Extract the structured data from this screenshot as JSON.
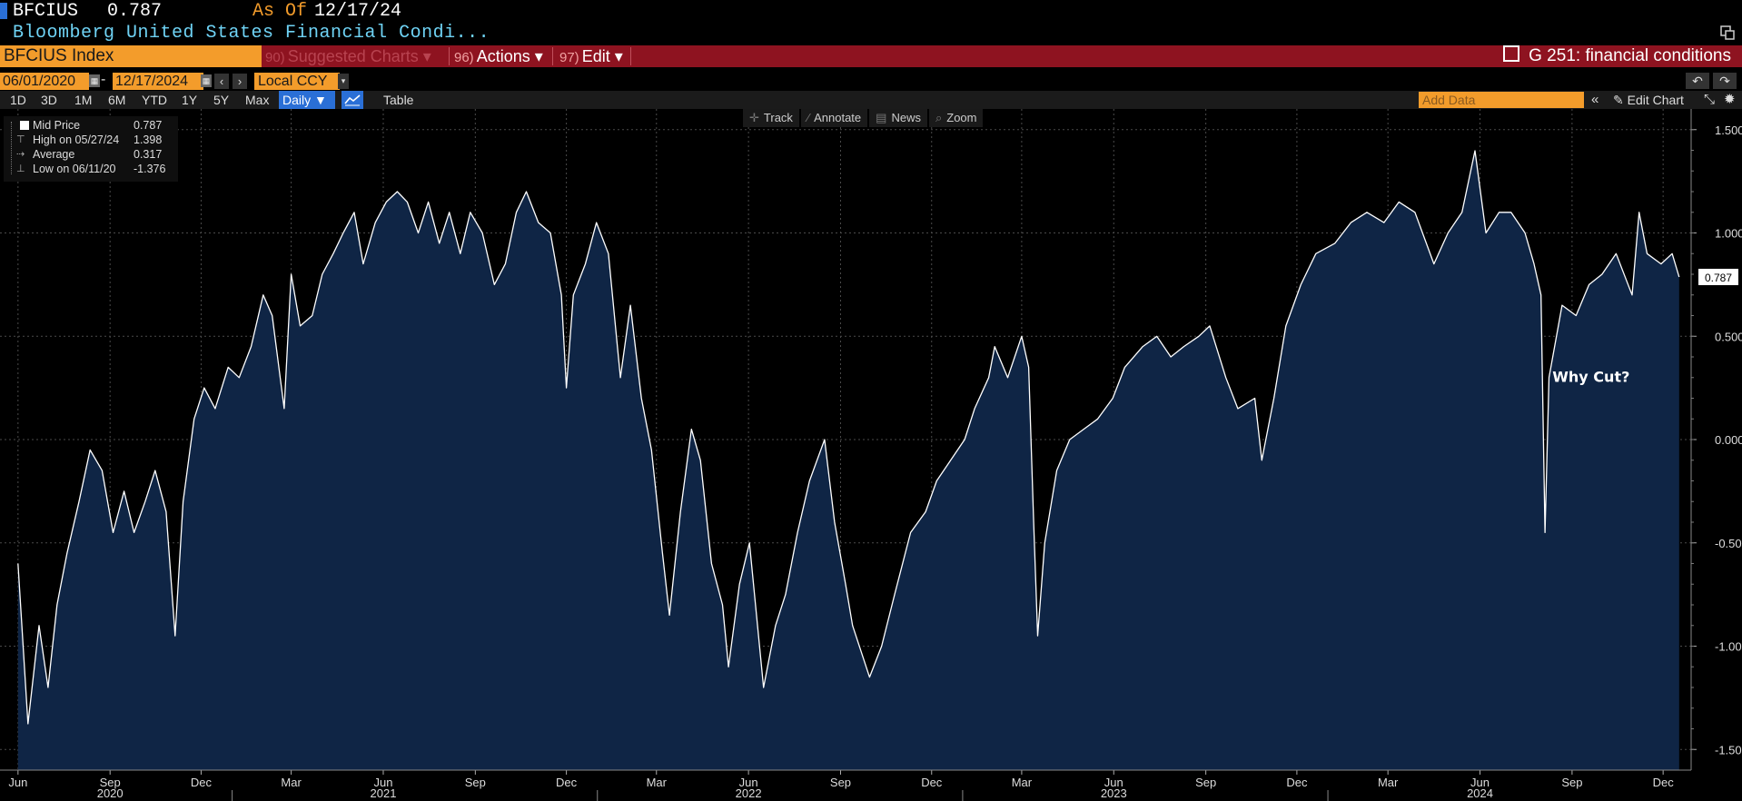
{
  "header": {
    "ticker": "BFCIUS",
    "value": "0.787",
    "as_of_label": "As Of",
    "as_of_date": "12/17/24",
    "description": "Bloomberg United States Financial Condi..."
  },
  "command_bar": {
    "index_field": "BFCIUS Index",
    "suggested_num": "90)",
    "suggested_label": "Suggested Charts",
    "actions_num": "96)",
    "actions_label": "Actions",
    "edit_num": "97)",
    "edit_label": "Edit",
    "g_title": "G 251: financial conditions"
  },
  "date_range": {
    "start": "06/01/2020",
    "end": "12/17/2024",
    "dash": "-",
    "currency": "Local CCY"
  },
  "periods": [
    "1D",
    "3D",
    "1M",
    "6M",
    "YTD",
    "1Y",
    "5Y",
    "Max"
  ],
  "toolbar": {
    "frequency": "Daily",
    "table_label": "Table",
    "add_data_placeholder": "Add Data",
    "edit_chart_label": "Edit Chart"
  },
  "chart_tools": [
    "Track",
    "Annotate",
    "News",
    "Zoom"
  ],
  "legend": {
    "mid_label": "Mid Price",
    "mid_value": "0.787",
    "high_label": "High on 05/27/24",
    "high_value": "1.398",
    "avg_label": "Average",
    "avg_value": "0.317",
    "low_label": "Low on 06/11/20",
    "low_value": "-1.376"
  },
  "colors": {
    "accent_orange": "#f39c2b",
    "bar_red": "#8e1320",
    "select_blue": "#2a6fd6",
    "area_fill": "#0f2545",
    "line": "#ffffff"
  },
  "chart_data": {
    "type": "area",
    "title": "",
    "xlabel": "",
    "ylabel": "",
    "ylim": [
      -1.6,
      1.6
    ],
    "y_ticks": [
      1.5,
      1.0,
      0.5,
      0.0,
      -0.5,
      -1.0,
      -1.5
    ],
    "y_tick_labels": [
      "1.500",
      "1.000",
      "0.500",
      "0.000",
      "-0.500",
      "-1.000",
      "-1.500"
    ],
    "grid": true,
    "last_value_label": "0.787",
    "x_month_ticks": [
      {
        "label": "Jun",
        "date": "2020-06"
      },
      {
        "label": "Sep",
        "date": "2020-09"
      },
      {
        "label": "Dec",
        "date": "2020-12"
      },
      {
        "label": "Mar",
        "date": "2021-03"
      },
      {
        "label": "Jun",
        "date": "2021-06"
      },
      {
        "label": "Sep",
        "date": "2021-09"
      },
      {
        "label": "Dec",
        "date": "2021-12"
      },
      {
        "label": "Mar",
        "date": "2022-03"
      },
      {
        "label": "Jun",
        "date": "2022-06"
      },
      {
        "label": "Sep",
        "date": "2022-09"
      },
      {
        "label": "Dec",
        "date": "2022-12"
      },
      {
        "label": "Mar",
        "date": "2023-03"
      },
      {
        "label": "Jun",
        "date": "2023-06"
      },
      {
        "label": "Sep",
        "date": "2023-09"
      },
      {
        "label": "Dec",
        "date": "2023-12"
      },
      {
        "label": "Mar",
        "date": "2024-03"
      },
      {
        "label": "Jun",
        "date": "2024-06"
      },
      {
        "label": "Sep",
        "date": "2024-09"
      },
      {
        "label": "Dec",
        "date": "2024-12"
      }
    ],
    "x_year_labels": [
      {
        "label": "2020",
        "date": "2020-09"
      },
      {
        "label": "2021",
        "date": "2021-06"
      },
      {
        "label": "2022",
        "date": "2022-06"
      },
      {
        "label": "2023",
        "date": "2023-06"
      },
      {
        "label": "2024",
        "date": "2024-06"
      }
    ],
    "series": [
      {
        "points": [
          [
            "2020-06-01",
            -0.6
          ],
          [
            "2020-06-11",
            -1.376
          ],
          [
            "2020-06-22",
            -0.9
          ],
          [
            "2020-07-01",
            -1.2
          ],
          [
            "2020-07-10",
            -0.8
          ],
          [
            "2020-07-20",
            -0.55
          ],
          [
            "2020-08-01",
            -0.3
          ],
          [
            "2020-08-12",
            -0.05
          ],
          [
            "2020-08-24",
            -0.15
          ],
          [
            "2020-09-04",
            -0.45
          ],
          [
            "2020-09-15",
            -0.25
          ],
          [
            "2020-09-25",
            -0.45
          ],
          [
            "2020-10-06",
            -0.3
          ],
          [
            "2020-10-16",
            -0.15
          ],
          [
            "2020-10-27",
            -0.35
          ],
          [
            "2020-11-05",
            -0.95
          ],
          [
            "2020-11-13",
            -0.3
          ],
          [
            "2020-11-24",
            0.1
          ],
          [
            "2020-12-04",
            0.25
          ],
          [
            "2020-12-15",
            0.15
          ],
          [
            "2020-12-28",
            0.35
          ],
          [
            "2021-01-08",
            0.3
          ],
          [
            "2021-01-20",
            0.45
          ],
          [
            "2021-02-01",
            0.7
          ],
          [
            "2021-02-10",
            0.6
          ],
          [
            "2021-02-22",
            0.15
          ],
          [
            "2021-03-01",
            0.8
          ],
          [
            "2021-03-10",
            0.55
          ],
          [
            "2021-03-22",
            0.6
          ],
          [
            "2021-04-01",
            0.8
          ],
          [
            "2021-04-12",
            0.9
          ],
          [
            "2021-04-22",
            1.0
          ],
          [
            "2021-05-03",
            1.1
          ],
          [
            "2021-05-12",
            0.85
          ],
          [
            "2021-05-24",
            1.05
          ],
          [
            "2021-06-04",
            1.15
          ],
          [
            "2021-06-15",
            1.2
          ],
          [
            "2021-06-25",
            1.15
          ],
          [
            "2021-07-06",
            1.0
          ],
          [
            "2021-07-16",
            1.15
          ],
          [
            "2021-07-27",
            0.95
          ],
          [
            "2021-08-06",
            1.1
          ],
          [
            "2021-08-17",
            0.9
          ],
          [
            "2021-08-27",
            1.1
          ],
          [
            "2021-09-08",
            1.0
          ],
          [
            "2021-09-20",
            0.75
          ],
          [
            "2021-10-01",
            0.85
          ],
          [
            "2021-10-12",
            1.1
          ],
          [
            "2021-10-22",
            1.2
          ],
          [
            "2021-11-03",
            1.05
          ],
          [
            "2021-11-15",
            1.0
          ],
          [
            "2021-11-26",
            0.7
          ],
          [
            "2021-12-01",
            0.25
          ],
          [
            "2021-12-08",
            0.7
          ],
          [
            "2021-12-20",
            0.85
          ],
          [
            "2021-12-31",
            1.05
          ],
          [
            "2022-01-12",
            0.9
          ],
          [
            "2022-01-24",
            0.3
          ],
          [
            "2022-02-03",
            0.65
          ],
          [
            "2022-02-14",
            0.2
          ],
          [
            "2022-02-24",
            -0.05
          ],
          [
            "2022-03-07",
            -0.55
          ],
          [
            "2022-03-14",
            -0.85
          ],
          [
            "2022-03-25",
            -0.35
          ],
          [
            "2022-04-05",
            0.05
          ],
          [
            "2022-04-14",
            -0.1
          ],
          [
            "2022-04-25",
            -0.6
          ],
          [
            "2022-05-06",
            -0.8
          ],
          [
            "2022-05-12",
            -1.1
          ],
          [
            "2022-05-23",
            -0.7
          ],
          [
            "2022-06-02",
            -0.5
          ],
          [
            "2022-06-16",
            -1.2
          ],
          [
            "2022-06-28",
            -0.9
          ],
          [
            "2022-07-08",
            -0.75
          ],
          [
            "2022-07-20",
            -0.45
          ],
          [
            "2022-08-01",
            -0.2
          ],
          [
            "2022-08-16",
            0.0
          ],
          [
            "2022-08-26",
            -0.4
          ],
          [
            "2022-09-06",
            -0.7
          ],
          [
            "2022-09-13",
            -0.9
          ],
          [
            "2022-09-30",
            -1.15
          ],
          [
            "2022-10-12",
            -1.0
          ],
          [
            "2022-10-25",
            -0.75
          ],
          [
            "2022-11-10",
            -0.45
          ],
          [
            "2022-11-25",
            -0.35
          ],
          [
            "2022-12-06",
            -0.2
          ],
          [
            "2022-12-20",
            -0.1
          ],
          [
            "2023-01-03",
            0.0
          ],
          [
            "2023-01-13",
            0.15
          ],
          [
            "2023-01-27",
            0.3
          ],
          [
            "2023-02-02",
            0.45
          ],
          [
            "2023-02-15",
            0.3
          ],
          [
            "2023-03-01",
            0.5
          ],
          [
            "2023-03-08",
            0.35
          ],
          [
            "2023-03-13",
            -0.4
          ],
          [
            "2023-03-17",
            -0.95
          ],
          [
            "2023-03-24",
            -0.5
          ],
          [
            "2023-04-05",
            -0.15
          ],
          [
            "2023-04-18",
            0.0
          ],
          [
            "2023-05-02",
            0.05
          ],
          [
            "2023-05-16",
            0.1
          ],
          [
            "2023-05-31",
            0.2
          ],
          [
            "2023-06-12",
            0.35
          ],
          [
            "2023-06-30",
            0.45
          ],
          [
            "2023-07-14",
            0.5
          ],
          [
            "2023-07-28",
            0.4
          ],
          [
            "2023-08-10",
            0.45
          ],
          [
            "2023-08-25",
            0.5
          ],
          [
            "2023-09-05",
            0.55
          ],
          [
            "2023-09-21",
            0.3
          ],
          [
            "2023-10-03",
            0.15
          ],
          [
            "2023-10-20",
            0.2
          ],
          [
            "2023-10-27",
            -0.1
          ],
          [
            "2023-11-08",
            0.2
          ],
          [
            "2023-11-20",
            0.55
          ],
          [
            "2023-12-05",
            0.75
          ],
          [
            "2023-12-20",
            0.9
          ],
          [
            "2024-01-08",
            0.95
          ],
          [
            "2024-01-24",
            1.05
          ],
          [
            "2024-02-09",
            1.1
          ],
          [
            "2024-02-26",
            1.05
          ],
          [
            "2024-03-12",
            1.15
          ],
          [
            "2024-03-28",
            1.1
          ],
          [
            "2024-04-16",
            0.85
          ],
          [
            "2024-04-30",
            1.0
          ],
          [
            "2024-05-14",
            1.1
          ],
          [
            "2024-05-27",
            1.398
          ],
          [
            "2024-06-07",
            1.0
          ],
          [
            "2024-06-20",
            1.1
          ],
          [
            "2024-07-02",
            1.1
          ],
          [
            "2024-07-16",
            1.0
          ],
          [
            "2024-07-25",
            0.85
          ],
          [
            "2024-08-01",
            0.7
          ],
          [
            "2024-08-05",
            -0.45
          ],
          [
            "2024-08-09",
            0.3
          ],
          [
            "2024-08-22",
            0.65
          ],
          [
            "2024-09-05",
            0.6
          ],
          [
            "2024-09-18",
            0.75
          ],
          [
            "2024-10-01",
            0.8
          ],
          [
            "2024-10-15",
            0.9
          ],
          [
            "2024-10-31",
            0.7
          ],
          [
            "2024-11-07",
            1.1
          ],
          [
            "2024-11-15",
            0.9
          ],
          [
            "2024-11-29",
            0.85
          ],
          [
            "2024-12-10",
            0.9
          ],
          [
            "2024-12-17",
            0.787
          ]
        ]
      }
    ],
    "annotations": [
      {
        "text": "Why Cut?",
        "date": "2024-09-20",
        "value": 0.28
      }
    ]
  }
}
